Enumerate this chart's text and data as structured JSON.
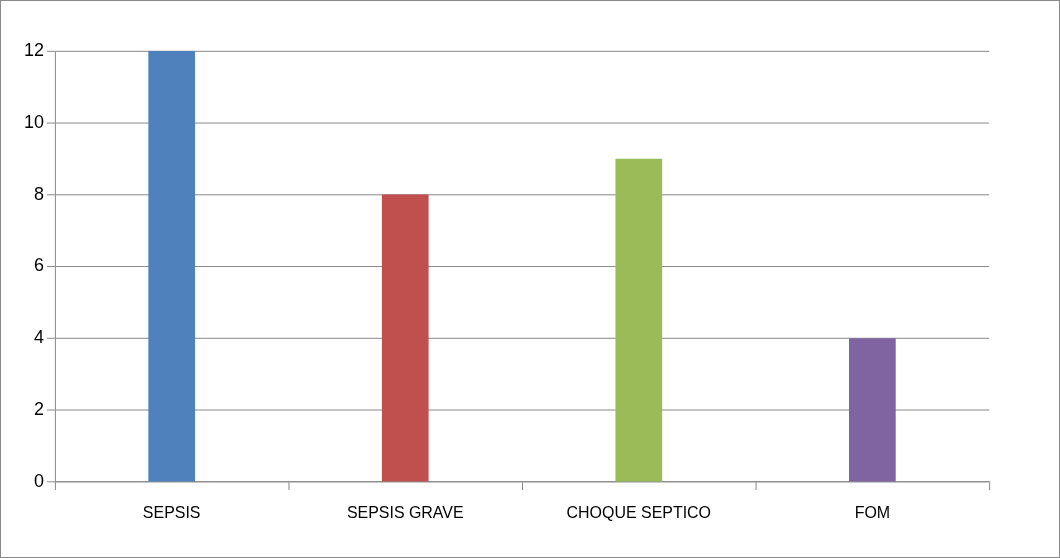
{
  "chart_data": {
    "type": "bar",
    "categories": [
      "SEPSIS",
      "SEPSIS GRAVE",
      "CHOQUE SEPTICO",
      "FOM"
    ],
    "values": [
      12,
      8,
      9,
      4
    ],
    "colors": [
      "#4f81bd",
      "#c0504d",
      "#9bbb59",
      "#8064a2"
    ],
    "ylim": [
      0,
      12
    ],
    "yticks": [
      0,
      2,
      4,
      6,
      8,
      10,
      12
    ],
    "grid": true,
    "legend": false
  }
}
